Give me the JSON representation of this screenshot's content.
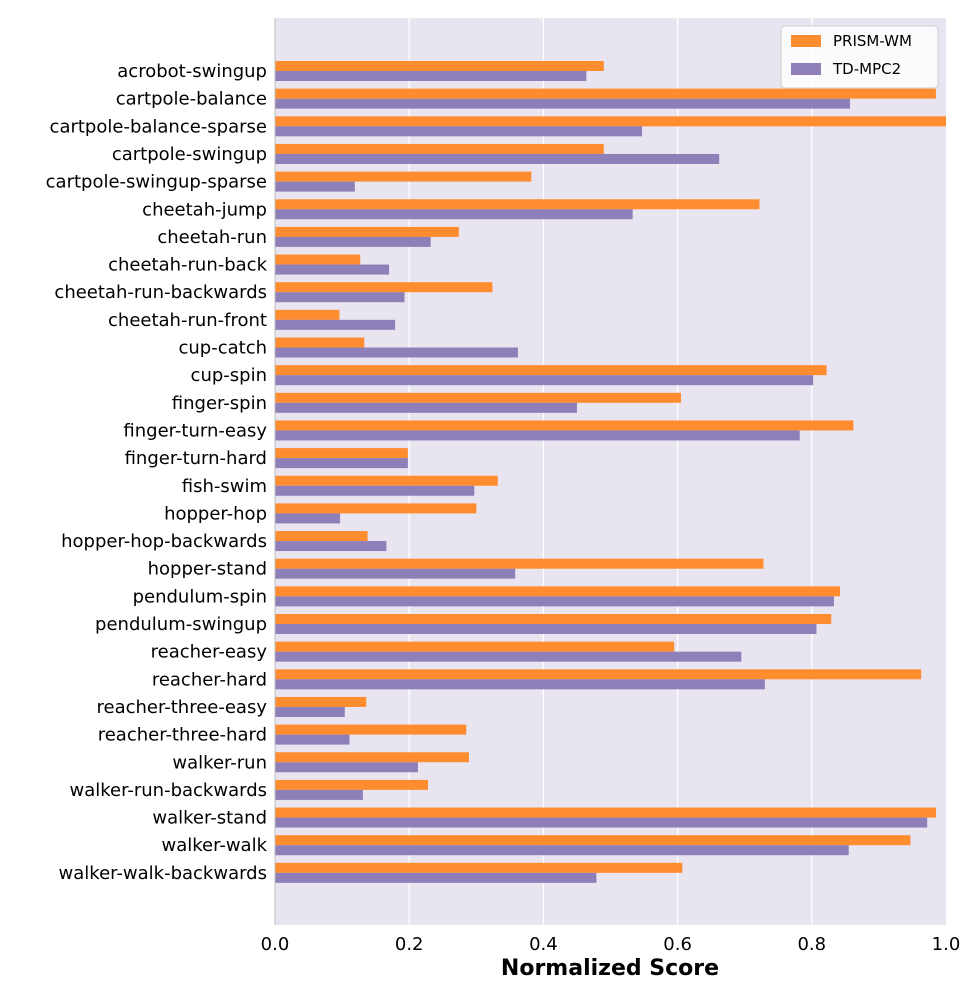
{
  "chart_data": {
    "type": "bar",
    "orientation": "horizontal",
    "title": "",
    "xlabel": "Normalized Score",
    "ylabel": "",
    "xlim": [
      0,
      1.0
    ],
    "xticks": [
      "0.0",
      "0.2",
      "0.4",
      "0.6",
      "0.8",
      "1.0"
    ],
    "grid": "vertical",
    "legend_position": "top-right",
    "categories": [
      "acrobot-swingup",
      "cartpole-balance",
      "cartpole-balance-sparse",
      "cartpole-swingup",
      "cartpole-swingup-sparse",
      "cheetah-jump",
      "cheetah-run",
      "cheetah-run-back",
      "cheetah-run-backwards",
      "cheetah-run-front",
      "cup-catch",
      "cup-spin",
      "finger-spin",
      "finger-turn-easy",
      "finger-turn-hard",
      "fish-swim",
      "hopper-hop",
      "hopper-hop-backwards",
      "hopper-stand",
      "pendulum-spin",
      "pendulum-swingup",
      "reacher-easy",
      "reacher-hard",
      "reacher-three-easy",
      "reacher-three-hard",
      "walker-run",
      "walker-run-backwards",
      "walker-stand",
      "walker-walk",
      "walker-walk-backwards"
    ],
    "series": [
      {
        "name": "PRISM-WM",
        "color": "#ff8c2e",
        "values": [
          0.49,
          0.985,
          1.0,
          0.49,
          0.382,
          0.722,
          0.274,
          0.127,
          0.324,
          0.096,
          0.133,
          0.822,
          0.605,
          0.862,
          0.198,
          0.332,
          0.3,
          0.138,
          0.728,
          0.842,
          0.829,
          0.595,
          0.963,
          0.136,
          0.285,
          0.289,
          0.228,
          0.985,
          0.947,
          0.607
        ]
      },
      {
        "name": "TD-MPC2",
        "color": "#8e7fb8",
        "values": [
          0.464,
          0.857,
          0.547,
          0.662,
          0.119,
          0.533,
          0.232,
          0.17,
          0.193,
          0.179,
          0.362,
          0.802,
          0.45,
          0.782,
          0.198,
          0.297,
          0.097,
          0.166,
          0.358,
          0.833,
          0.807,
          0.695,
          0.73,
          0.104,
          0.111,
          0.213,
          0.131,
          0.972,
          0.855,
          0.479
        ]
      }
    ]
  }
}
